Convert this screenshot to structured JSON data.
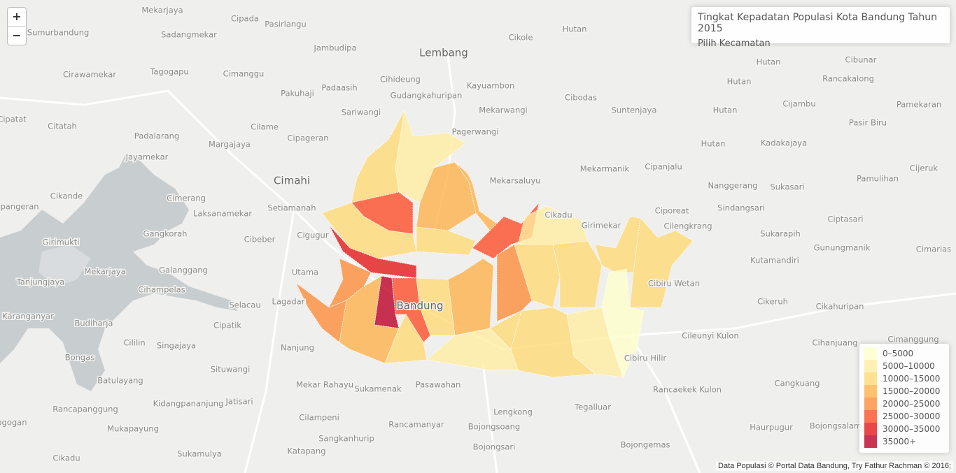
{
  "controls": {
    "zoom_in": "+",
    "zoom_out": "−"
  },
  "info": {
    "title": "Tingkat Kepadatan Populasi Kota Bandung Tahun 2015",
    "subtitle": "Pilih Kecamatan"
  },
  "legend": {
    "items": [
      {
        "label": "0–5000",
        "color": "#ffffcc"
      },
      {
        "label": "5000–10000",
        "color": "#ffeda0"
      },
      {
        "label": "10000–15000",
        "color": "#fed976"
      },
      {
        "label": "15000–20000",
        "color": "#feb24c"
      },
      {
        "label": "20000–25000",
        "color": "#fd8d3c"
      },
      {
        "label": "25000–30000",
        "color": "#fc4e2a"
      },
      {
        "label": "30000–35000",
        "color": "#e31a1c"
      },
      {
        "label": "35000+",
        "color": "#bd0026"
      }
    ]
  },
  "places": [
    "Mekarjaya",
    "Cipada",
    "Pasirlangu",
    "Sumurbandung",
    "Sadangmekar",
    "Jambudipa",
    "Cikole",
    "Hutan",
    "Lembang",
    "Cirawamekar",
    "Tagogapu",
    "Cimanggu",
    "Cihideung",
    "Hutan",
    "Cibunar",
    "Pakuhaji",
    "Padaasih",
    "Gudangkahuripan",
    "Kayuambon",
    "Cibodas",
    "Hutan",
    "Rancakalong",
    "Sariwangi",
    "Mekarwangi",
    "Suntenjaya",
    "Hutan",
    "Cijambu",
    "Pamekaran",
    "Cipatat",
    "Citatah",
    "Cilame",
    "Pagerwangi",
    "Pasir Biru",
    "Padalarang",
    "Margajaya",
    "Cipageran",
    "Hutan",
    "Kadakajaya",
    "Jayamekar",
    "Mekarmanik",
    "Cipanjalu",
    "Cijeruk",
    "Cimahi",
    "Mekarsaluyu",
    "Pamulihan",
    "Nanggerang",
    "Sukasari",
    "Cikande",
    "Cimerang",
    "Setiamanah",
    "Sindangsari",
    "Ciporeat",
    "pangeran",
    "Laksanamekar",
    "Cikadu",
    "Girimekar",
    "Cilengkrang",
    "Ciptasari",
    "Gangkorah",
    "Cigugur",
    "Cibeber",
    "Sukarapih",
    "Gunungmanik",
    "Cimarias",
    "Girimukti",
    "Kutamandiri",
    "Mekarjaya",
    "Galanggang",
    "Utama",
    "Cibiru Wetan",
    "Tanjungjaya",
    "Cihampelas",
    "Lagadar",
    "Selacau",
    "Cikeruh",
    "Cikahuripan",
    "Karanganyar",
    "Budiharja",
    "Cipatik",
    "Bandung",
    "Cileunyi Kulon",
    "Cimanggung",
    "Cililin",
    "Singajaya",
    "Nanjung",
    "Cihanjuang",
    "Bongas",
    "Cibiru Hilir",
    "Situwangi",
    "Batulayang",
    "Mekar Rahayu",
    "Sukamenak",
    "Pasawahan",
    "Rancaekek Kulon",
    "Cangkuang",
    "Jatisari",
    "Kidangpananjung",
    "Tegalluar",
    "Lengkong",
    "Rancapanggung",
    "Mukapayung",
    "Cilampeni",
    "Rancamanyar",
    "Bojongsoang",
    "Haurpugur",
    "Bojongsalam",
    "ogogan",
    "Sangkanhurip",
    "Bojongemas",
    "Bojongsari",
    "Katapang",
    "Sukamulya",
    "Cikadu"
  ],
  "attribution": "Data Populasi © Portal Data Bandung, Try Fathur Rachman © 2016;"
}
